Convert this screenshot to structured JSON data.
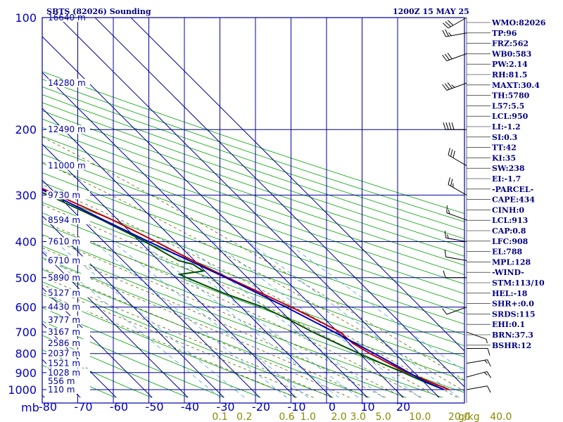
{
  "title_left": "SBTS (82026) Sounding",
  "title_right": "1200Z 15 MAY 25",
  "pressure_unit": "mb",
  "mixing_unit": "g/kg",
  "chart_data": {
    "type": "line",
    "pressure_levels": [
      100,
      200,
      300,
      400,
      500,
      600,
      700,
      800,
      900,
      1000
    ],
    "pressure_labels": [
      "100",
      "200",
      "300",
      "400",
      "500",
      "600",
      "700",
      "800",
      "900",
      "1000"
    ],
    "temperature_ticks": [
      -80,
      -70,
      -60,
      -50,
      -40,
      -30,
      -20,
      -10,
      0,
      10,
      20
    ],
    "temperature_labels": [
      "-80",
      "-70",
      "-60",
      "-50",
      "-40",
      "-30",
      "-20",
      "-10",
      "0",
      "10",
      "20"
    ],
    "xlim": [
      -80,
      30
    ],
    "ylim": [
      100,
      1050
    ],
    "height_labels": [
      {
        "p": 100,
        "text": "16640 m"
      },
      {
        "p": 150,
        "text": "14280 m"
      },
      {
        "p": 200,
        "text": "12490 m"
      },
      {
        "p": 250,
        "text": "11000 m"
      },
      {
        "p": 300,
        "text": "9730 m"
      },
      {
        "p": 350,
        "text": "8594 m"
      },
      {
        "p": 400,
        "text": "7610 m"
      },
      {
        "p": 450,
        "text": "6710 m"
      },
      {
        "p": 500,
        "text": "5890 m"
      },
      {
        "p": 550,
        "text": "5127 m"
      },
      {
        "p": 600,
        "text": "4430 m"
      },
      {
        "p": 650,
        "text": "3777 m"
      },
      {
        "p": 700,
        "text": "3167 m"
      },
      {
        "p": 750,
        "text": "2586 m"
      },
      {
        "p": 800,
        "text": "2037 m"
      },
      {
        "p": 850,
        "text": "1521 m"
      },
      {
        "p": 900,
        "text": "1028 m"
      },
      {
        "p": 950,
        "text": "556 m"
      },
      {
        "p": 1000,
        "text": "110 m"
      }
    ],
    "mixing_ratio_labels": [
      {
        "w": 0.1,
        "text": "0.1"
      },
      {
        "w": 0.2,
        "text": "0.2"
      },
      {
        "w": 0.6,
        "text": "0.6"
      },
      {
        "w": 1.0,
        "text": "1.0"
      },
      {
        "w": 2.0,
        "text": "2.0"
      },
      {
        "w": 3.0,
        "text": "3.0"
      },
      {
        "w": 5.0,
        "text": "5.0"
      },
      {
        "w": 10.0,
        "text": "10.0"
      },
      {
        "w": 20.0,
        "text": "20.0"
      },
      {
        "w": 40.0,
        "text": "40.0"
      }
    ],
    "series": [
      {
        "name": "Temperature",
        "color": "#c00000",
        "points": [
          [
            1000,
            25
          ],
          [
            950,
            21.5
          ],
          [
            925,
            19.8
          ],
          [
            900,
            18
          ],
          [
            850,
            15.5
          ],
          [
            800,
            13
          ],
          [
            750,
            11
          ],
          [
            700,
            10.6
          ],
          [
            650,
            7.5
          ],
          [
            600,
            4
          ],
          [
            550,
            -0.5
          ],
          [
            500,
            -5.5
          ],
          [
            460,
            -9.5
          ],
          [
            420,
            -13.5
          ],
          [
            400,
            -15.5
          ],
          [
            350,
            -21.5
          ],
          [
            300,
            -30
          ],
          [
            250,
            -40.5
          ],
          [
            200,
            -51.5
          ],
          [
            150,
            -65
          ],
          [
            125,
            -71.5
          ],
          [
            110,
            -75
          ],
          [
            100,
            -80
          ]
        ]
      },
      {
        "name": "Dewpoint",
        "color": "#005000",
        "points": [
          [
            1000,
            23.5
          ],
          [
            950,
            20
          ],
          [
            925,
            18.5
          ],
          [
            900,
            17
          ],
          [
            850,
            13.5
          ],
          [
            800,
            10
          ],
          [
            750,
            6.5
          ],
          [
            700,
            3
          ],
          [
            650,
            0
          ],
          [
            600,
            -4
          ],
          [
            550,
            -11
          ],
          [
            500,
            -17
          ],
          [
            490,
            -18
          ],
          [
            480,
            -10.5
          ],
          [
            460,
            -11.5
          ],
          [
            450,
            -14.5
          ],
          [
            400,
            -18.5
          ],
          [
            350,
            -24.5
          ],
          [
            300,
            -32.5
          ],
          [
            250,
            -44
          ],
          [
            200,
            -58.5
          ],
          [
            150,
            -73
          ],
          [
            130,
            -80
          ]
        ]
      },
      {
        "name": "Parcel",
        "color": "#0000c0",
        "points": [
          [
            1000,
            23.5
          ],
          [
            950,
            20.5
          ],
          [
            913,
            19
          ],
          [
            850,
            16.5
          ],
          [
            800,
            14.2
          ],
          [
            700,
            9
          ],
          [
            600,
            2.5
          ],
          [
            500,
            -6
          ],
          [
            450,
            -11.5
          ],
          [
            400,
            -17.5
          ],
          [
            350,
            -24
          ],
          [
            300,
            -31
          ],
          [
            250,
            -40.5
          ],
          [
            200,
            -52.5
          ],
          [
            150,
            -66.5
          ],
          [
            128,
            -74
          ],
          [
            110,
            -80
          ]
        ]
      }
    ],
    "wind_barbs": [
      {
        "p": 1000,
        "dir": 80,
        "spd": 10
      },
      {
        "p": 925,
        "dir": 75,
        "spd": 15
      },
      {
        "p": 850,
        "dir": 80,
        "spd": 15
      },
      {
        "p": 775,
        "dir": 90,
        "spd": 10
      },
      {
        "p": 700,
        "dir": 110,
        "spd": 5
      },
      {
        "p": 600,
        "dir": 250,
        "spd": 10
      },
      {
        "p": 500,
        "dir": 270,
        "spd": 10
      },
      {
        "p": 450,
        "dir": 280,
        "spd": 10
      },
      {
        "p": 400,
        "dir": 280,
        "spd": 15
      },
      {
        "p": 350,
        "dir": 290,
        "spd": 15
      },
      {
        "p": 300,
        "dir": 300,
        "spd": 25
      },
      {
        "p": 250,
        "dir": 300,
        "spd": 30
      },
      {
        "p": 200,
        "dir": 270,
        "spd": 40
      },
      {
        "p": 150,
        "dir": 250,
        "spd": 35
      },
      {
        "p": 125,
        "dir": 250,
        "spd": 30
      },
      {
        "p": 110,
        "dir": 260,
        "spd": 25
      },
      {
        "p": 100,
        "dir": 240,
        "spd": 30
      }
    ]
  },
  "indices": [
    "WMO:82026",
    "TP:96",
    "FRZ:562",
    "WB0:583",
    "PW:2.14",
    "RH:81.5",
    "MAXT:30.4",
    "TH:5780",
    "L57:5.5",
    "LCL:950",
    "LI:-1.2",
    "SI:0.3",
    "TT:42",
    "KI:35",
    "SW:238",
    "EI:-1.7",
    "-PARCEL-",
    "CAPE:434",
    "CINH:0",
    "LCL:913",
    "CAP:0.8",
    "LFC:908",
    "EL:788",
    "MPL:128",
    "-WIND-",
    "STM:113/10",
    "HEL:-18",
    "SHR+:0.0",
    "SRDS:115",
    "EHI:0.1",
    "BRN:37.3",
    "BSHR:12"
  ],
  "colors": {
    "grid": "#0000a0",
    "dry_adiabat": "#00a000",
    "moist_adiabat": "#606000",
    "mixing_ratio": "#40a0e0",
    "frame": "#0000a0"
  }
}
